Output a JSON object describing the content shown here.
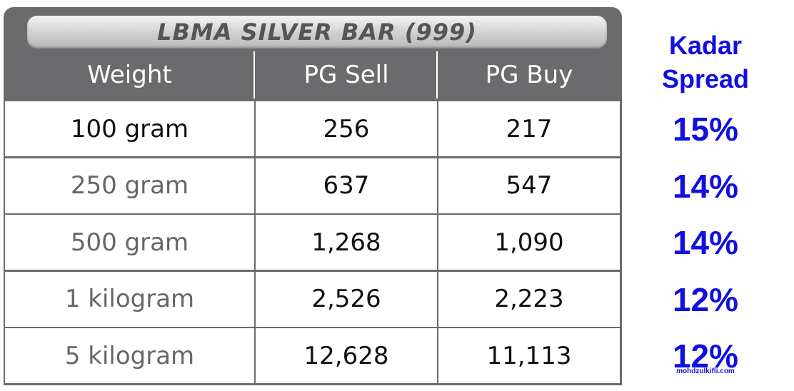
{
  "table": {
    "title": "LBMA SILVER BAR (999)",
    "headers": [
      "Weight",
      "PG Sell",
      "PG Buy"
    ],
    "rows": [
      [
        "100 gram",
        "256",
        "217"
      ],
      [
        "250 gram",
        "637",
        "547"
      ],
      [
        "500 gram",
        "1,268",
        "1,090"
      ],
      [
        "1 kilogram",
        "2,526",
        "2,223"
      ],
      [
        "5 kilogram",
        "12,628",
        "11,113"
      ]
    ]
  },
  "spread": {
    "title": "Kadar Spread",
    "values": [
      "15%",
      "14%",
      "14%",
      "12%",
      "12%"
    ]
  },
  "watermark": "mohdzulkifli.com"
}
